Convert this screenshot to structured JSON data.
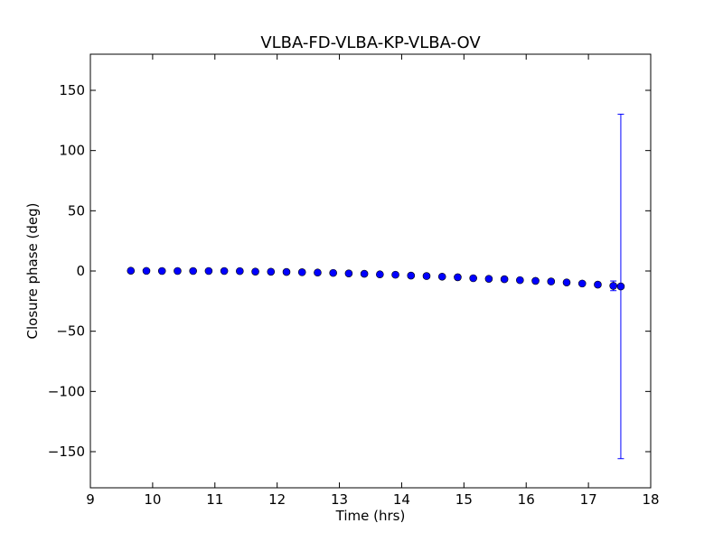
{
  "chart_data": {
    "type": "scatter",
    "title": "VLBA-FD-VLBA-KP-VLBA-OV",
    "xlabel": "Time (hrs)",
    "ylabel": "Closure phase (deg)",
    "xlim": [
      9,
      18
    ],
    "ylim": [
      -180,
      180
    ],
    "xticks": [
      9,
      10,
      11,
      12,
      13,
      14,
      15,
      16,
      17,
      18
    ],
    "xtick_labels": [
      "9",
      "10",
      "11",
      "12",
      "13",
      "14",
      "15",
      "16",
      "17",
      "18"
    ],
    "yticks": [
      -150,
      -100,
      -50,
      0,
      50,
      100,
      150
    ],
    "ytick_labels": [
      "−150",
      "−100",
      "−50",
      "0",
      "50",
      "100",
      "150"
    ],
    "grid": false,
    "marker_color": "#0000ff",
    "errorbar_color": "#0000ff",
    "points": [
      {
        "x": 9.65,
        "y": 0.2,
        "err": 0.5
      },
      {
        "x": 9.9,
        "y": 0.1,
        "err": 0.5
      },
      {
        "x": 10.15,
        "y": 0.0,
        "err": 0.5
      },
      {
        "x": 10.4,
        "y": 0.0,
        "err": 0.5
      },
      {
        "x": 10.65,
        "y": 0.0,
        "err": 0.5
      },
      {
        "x": 10.9,
        "y": 0.0,
        "err": 0.5
      },
      {
        "x": 11.15,
        "y": 0.0,
        "err": 0.5
      },
      {
        "x": 11.4,
        "y": -0.1,
        "err": 0.5
      },
      {
        "x": 11.65,
        "y": -0.5,
        "err": 0.5
      },
      {
        "x": 11.9,
        "y": -0.6,
        "err": 0.5
      },
      {
        "x": 12.15,
        "y": -0.8,
        "err": 0.5
      },
      {
        "x": 12.4,
        "y": -1.0,
        "err": 0.5
      },
      {
        "x": 12.65,
        "y": -1.3,
        "err": 0.5
      },
      {
        "x": 12.9,
        "y": -1.6,
        "err": 0.5
      },
      {
        "x": 13.15,
        "y": -2.0,
        "err": 0.5
      },
      {
        "x": 13.4,
        "y": -2.3,
        "err": 0.5
      },
      {
        "x": 13.65,
        "y": -2.8,
        "err": 0.5
      },
      {
        "x": 13.9,
        "y": -3.1,
        "err": 0.5
      },
      {
        "x": 14.15,
        "y": -3.8,
        "err": 0.5
      },
      {
        "x": 14.4,
        "y": -4.2,
        "err": 0.5
      },
      {
        "x": 14.65,
        "y": -4.7,
        "err": 0.5
      },
      {
        "x": 14.9,
        "y": -5.2,
        "err": 0.5
      },
      {
        "x": 15.15,
        "y": -6.0,
        "err": 0.5
      },
      {
        "x": 15.4,
        "y": -6.5,
        "err": 0.5
      },
      {
        "x": 15.65,
        "y": -6.8,
        "err": 0.5
      },
      {
        "x": 15.9,
        "y": -7.6,
        "err": 0.5
      },
      {
        "x": 16.15,
        "y": -8.2,
        "err": 0.5
      },
      {
        "x": 16.4,
        "y": -8.7,
        "err": 0.5
      },
      {
        "x": 16.65,
        "y": -9.5,
        "err": 0.5
      },
      {
        "x": 16.9,
        "y": -10.4,
        "err": 0.8
      },
      {
        "x": 17.15,
        "y": -11.3,
        "err": 0.8
      },
      {
        "x": 17.4,
        "y": -12.3,
        "err": 4.0
      },
      {
        "x": 17.52,
        "y": -12.8,
        "err": 143.0
      }
    ]
  }
}
